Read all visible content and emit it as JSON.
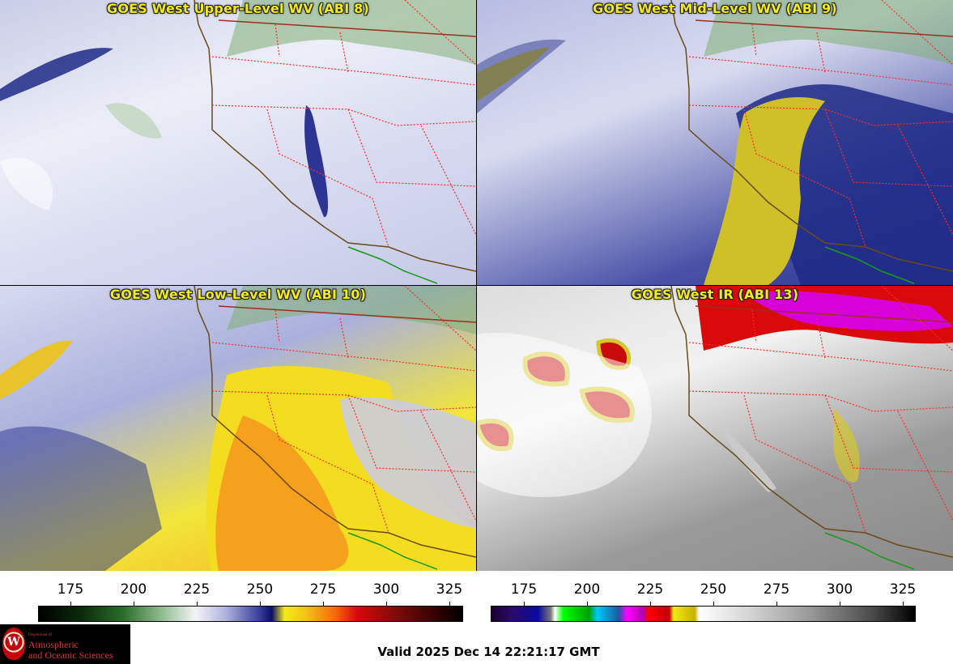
{
  "panels": [
    {
      "title": "GOES West Upper-Level WV (ABI 8)"
    },
    {
      "title": "GOES West Mid-Level WV (ABI 9)"
    },
    {
      "title": "GOES West Low-Level WV (ABI 10)"
    },
    {
      "title": "GOES West IR (ABI 13)"
    }
  ],
  "colorbars": [
    {
      "ticks": [
        "175",
        "200",
        "225",
        "250",
        "275",
        "300",
        "325"
      ]
    },
    {
      "ticks": [
        "175",
        "200",
        "225",
        "250",
        "275",
        "300",
        "325"
      ]
    }
  ],
  "logo": {
    "dept": "Department of",
    "line1": "Atmospheric",
    "line2": "and Oceanic Sciences",
    "seal_letter": "W"
  },
  "valid_time": "Valid 2025 Dec 14 22:21:17 GMT",
  "colors": {
    "title": "#f2ea1a",
    "state_border": "#ff2a2a",
    "coast": "#6b4a1a",
    "mexico_border": "#1a9a1a"
  }
}
